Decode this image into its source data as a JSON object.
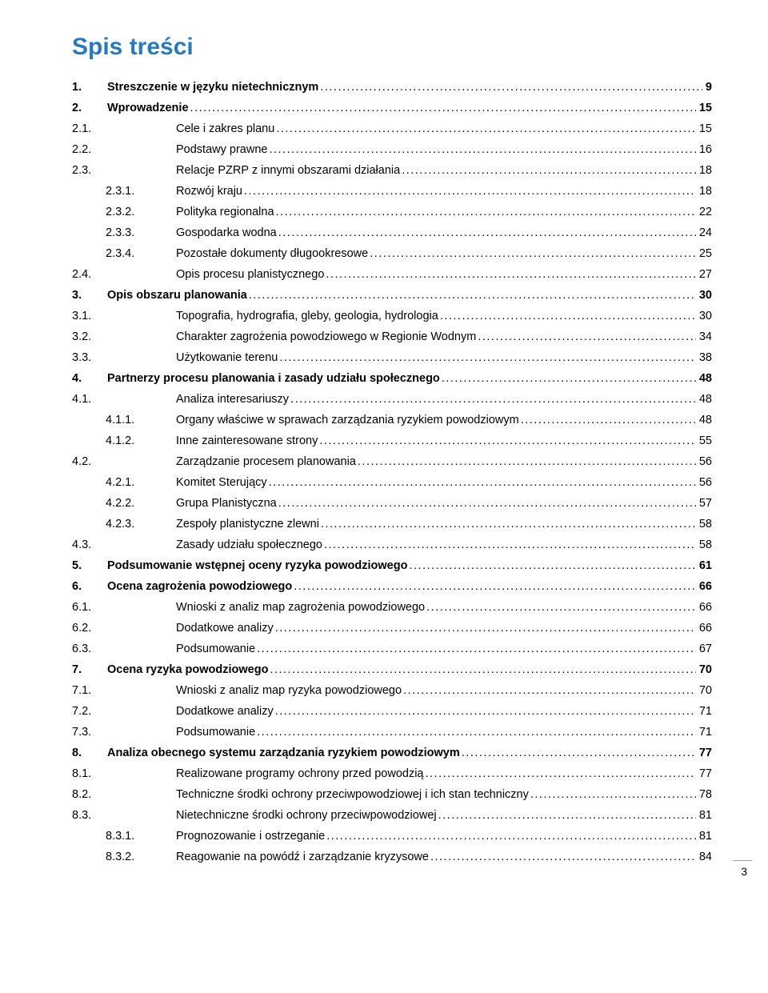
{
  "title": {
    "text": "Spis treści",
    "color": "#2a7ab9"
  },
  "pageNumber": "3",
  "dotColor": "#000000",
  "entries": [
    {
      "level": 1,
      "num": "1.",
      "label": "Streszczenie w języku nietechnicznym",
      "page": "9"
    },
    {
      "level": 1,
      "num": "2.",
      "label": "Wprowadzenie",
      "page": "15"
    },
    {
      "level": 2,
      "num": "2.1.",
      "label": "Cele i zakres planu",
      "page": "15"
    },
    {
      "level": 2,
      "num": "2.2.",
      "label": "Podstawy prawne",
      "page": "16"
    },
    {
      "level": 2,
      "num": "2.3.",
      "label": "Relacje PZRP z innymi obszarami działania",
      "page": "18"
    },
    {
      "level": 3,
      "num": "2.3.1.",
      "label": "Rozwój kraju",
      "page": "18"
    },
    {
      "level": 3,
      "num": "2.3.2.",
      "label": "Polityka regionalna",
      "page": "22"
    },
    {
      "level": 3,
      "num": "2.3.3.",
      "label": "Gospodarka wodna",
      "page": "24"
    },
    {
      "level": 3,
      "num": "2.3.4.",
      "label": "Pozostałe dokumenty długookresowe",
      "page": "25"
    },
    {
      "level": 2,
      "num": "2.4.",
      "label": "Opis procesu planistycznego",
      "page": "27"
    },
    {
      "level": 1,
      "num": "3.",
      "label": "Opis obszaru planowania",
      "page": "30"
    },
    {
      "level": 2,
      "num": "3.1.",
      "label": "Topografia, hydrografia, gleby, geologia, hydrologia",
      "page": "30"
    },
    {
      "level": 2,
      "num": "3.2.",
      "label": "Charakter zagrożenia powodziowego w Regionie Wodnym",
      "page": "34"
    },
    {
      "level": 2,
      "num": "3.3.",
      "label": "Użytkowanie terenu",
      "page": "38"
    },
    {
      "level": 1,
      "num": "4.",
      "label": "Partnerzy procesu planowania i zasady udziału społecznego",
      "page": "48"
    },
    {
      "level": 2,
      "num": "4.1.",
      "label": "Analiza interesariuszy",
      "page": "48"
    },
    {
      "level": 3,
      "num": "4.1.1.",
      "label": "Organy właściwe w sprawach zarządzania ryzykiem powodziowym",
      "page": "48"
    },
    {
      "level": 3,
      "num": "4.1.2.",
      "label": "Inne zainteresowane strony",
      "page": "55"
    },
    {
      "level": 2,
      "num": "4.2.",
      "label": "Zarządzanie procesem planowania",
      "page": "56"
    },
    {
      "level": 3,
      "num": "4.2.1.",
      "label": "Komitet Sterujący",
      "page": "56"
    },
    {
      "level": 3,
      "num": "4.2.2.",
      "label": "Grupa Planistyczna",
      "page": "57"
    },
    {
      "level": 3,
      "num": "4.2.3.",
      "label": "Zespoły planistyczne zlewni",
      "page": "58"
    },
    {
      "level": 2,
      "num": "4.3.",
      "label": "Zasady udziału społecznego",
      "page": "58"
    },
    {
      "level": 1,
      "num": "5.",
      "label": "Podsumowanie wstępnej oceny ryzyka powodziowego",
      "page": "61"
    },
    {
      "level": 1,
      "num": "6.",
      "label": "Ocena zagrożenia powodziowego",
      "page": "66"
    },
    {
      "level": 2,
      "num": "6.1.",
      "label": "Wnioski z analiz map zagrożenia powodziowego",
      "page": "66"
    },
    {
      "level": 2,
      "num": "6.2.",
      "label": "Dodatkowe analizy",
      "page": "66"
    },
    {
      "level": 2,
      "num": "6.3.",
      "label": "Podsumowanie",
      "page": "67"
    },
    {
      "level": 1,
      "num": "7.",
      "label": "Ocena ryzyka powodziowego",
      "page": "70"
    },
    {
      "level": 2,
      "num": "7.1.",
      "label": "Wnioski z analiz map ryzyka powodziowego",
      "page": "70"
    },
    {
      "level": 2,
      "num": "7.2.",
      "label": "Dodatkowe analizy",
      "page": "71"
    },
    {
      "level": 2,
      "num": "7.3.",
      "label": "Podsumowanie",
      "page": "71"
    },
    {
      "level": 1,
      "num": "8.",
      "label": "Analiza obecnego systemu zarządzania ryzykiem powodziowym",
      "page": "77"
    },
    {
      "level": 2,
      "num": "8.1.",
      "label": "Realizowane programy ochrony przed powodzią",
      "page": "77"
    },
    {
      "level": 2,
      "num": "8.2.",
      "label": "Techniczne środki ochrony przeciwpowodziowej i ich stan techniczny",
      "page": "78"
    },
    {
      "level": 2,
      "num": "8.3.",
      "label": "Nietechniczne środki ochrony przeciwpowodziowej",
      "page": "81"
    },
    {
      "level": 3,
      "num": "8.3.1.",
      "label": "Prognozowanie i ostrzeganie",
      "page": "81"
    },
    {
      "level": 3,
      "num": "8.3.2.",
      "label": "Reagowanie na powódź i zarządzanie kryzysowe",
      "page": "84"
    }
  ]
}
